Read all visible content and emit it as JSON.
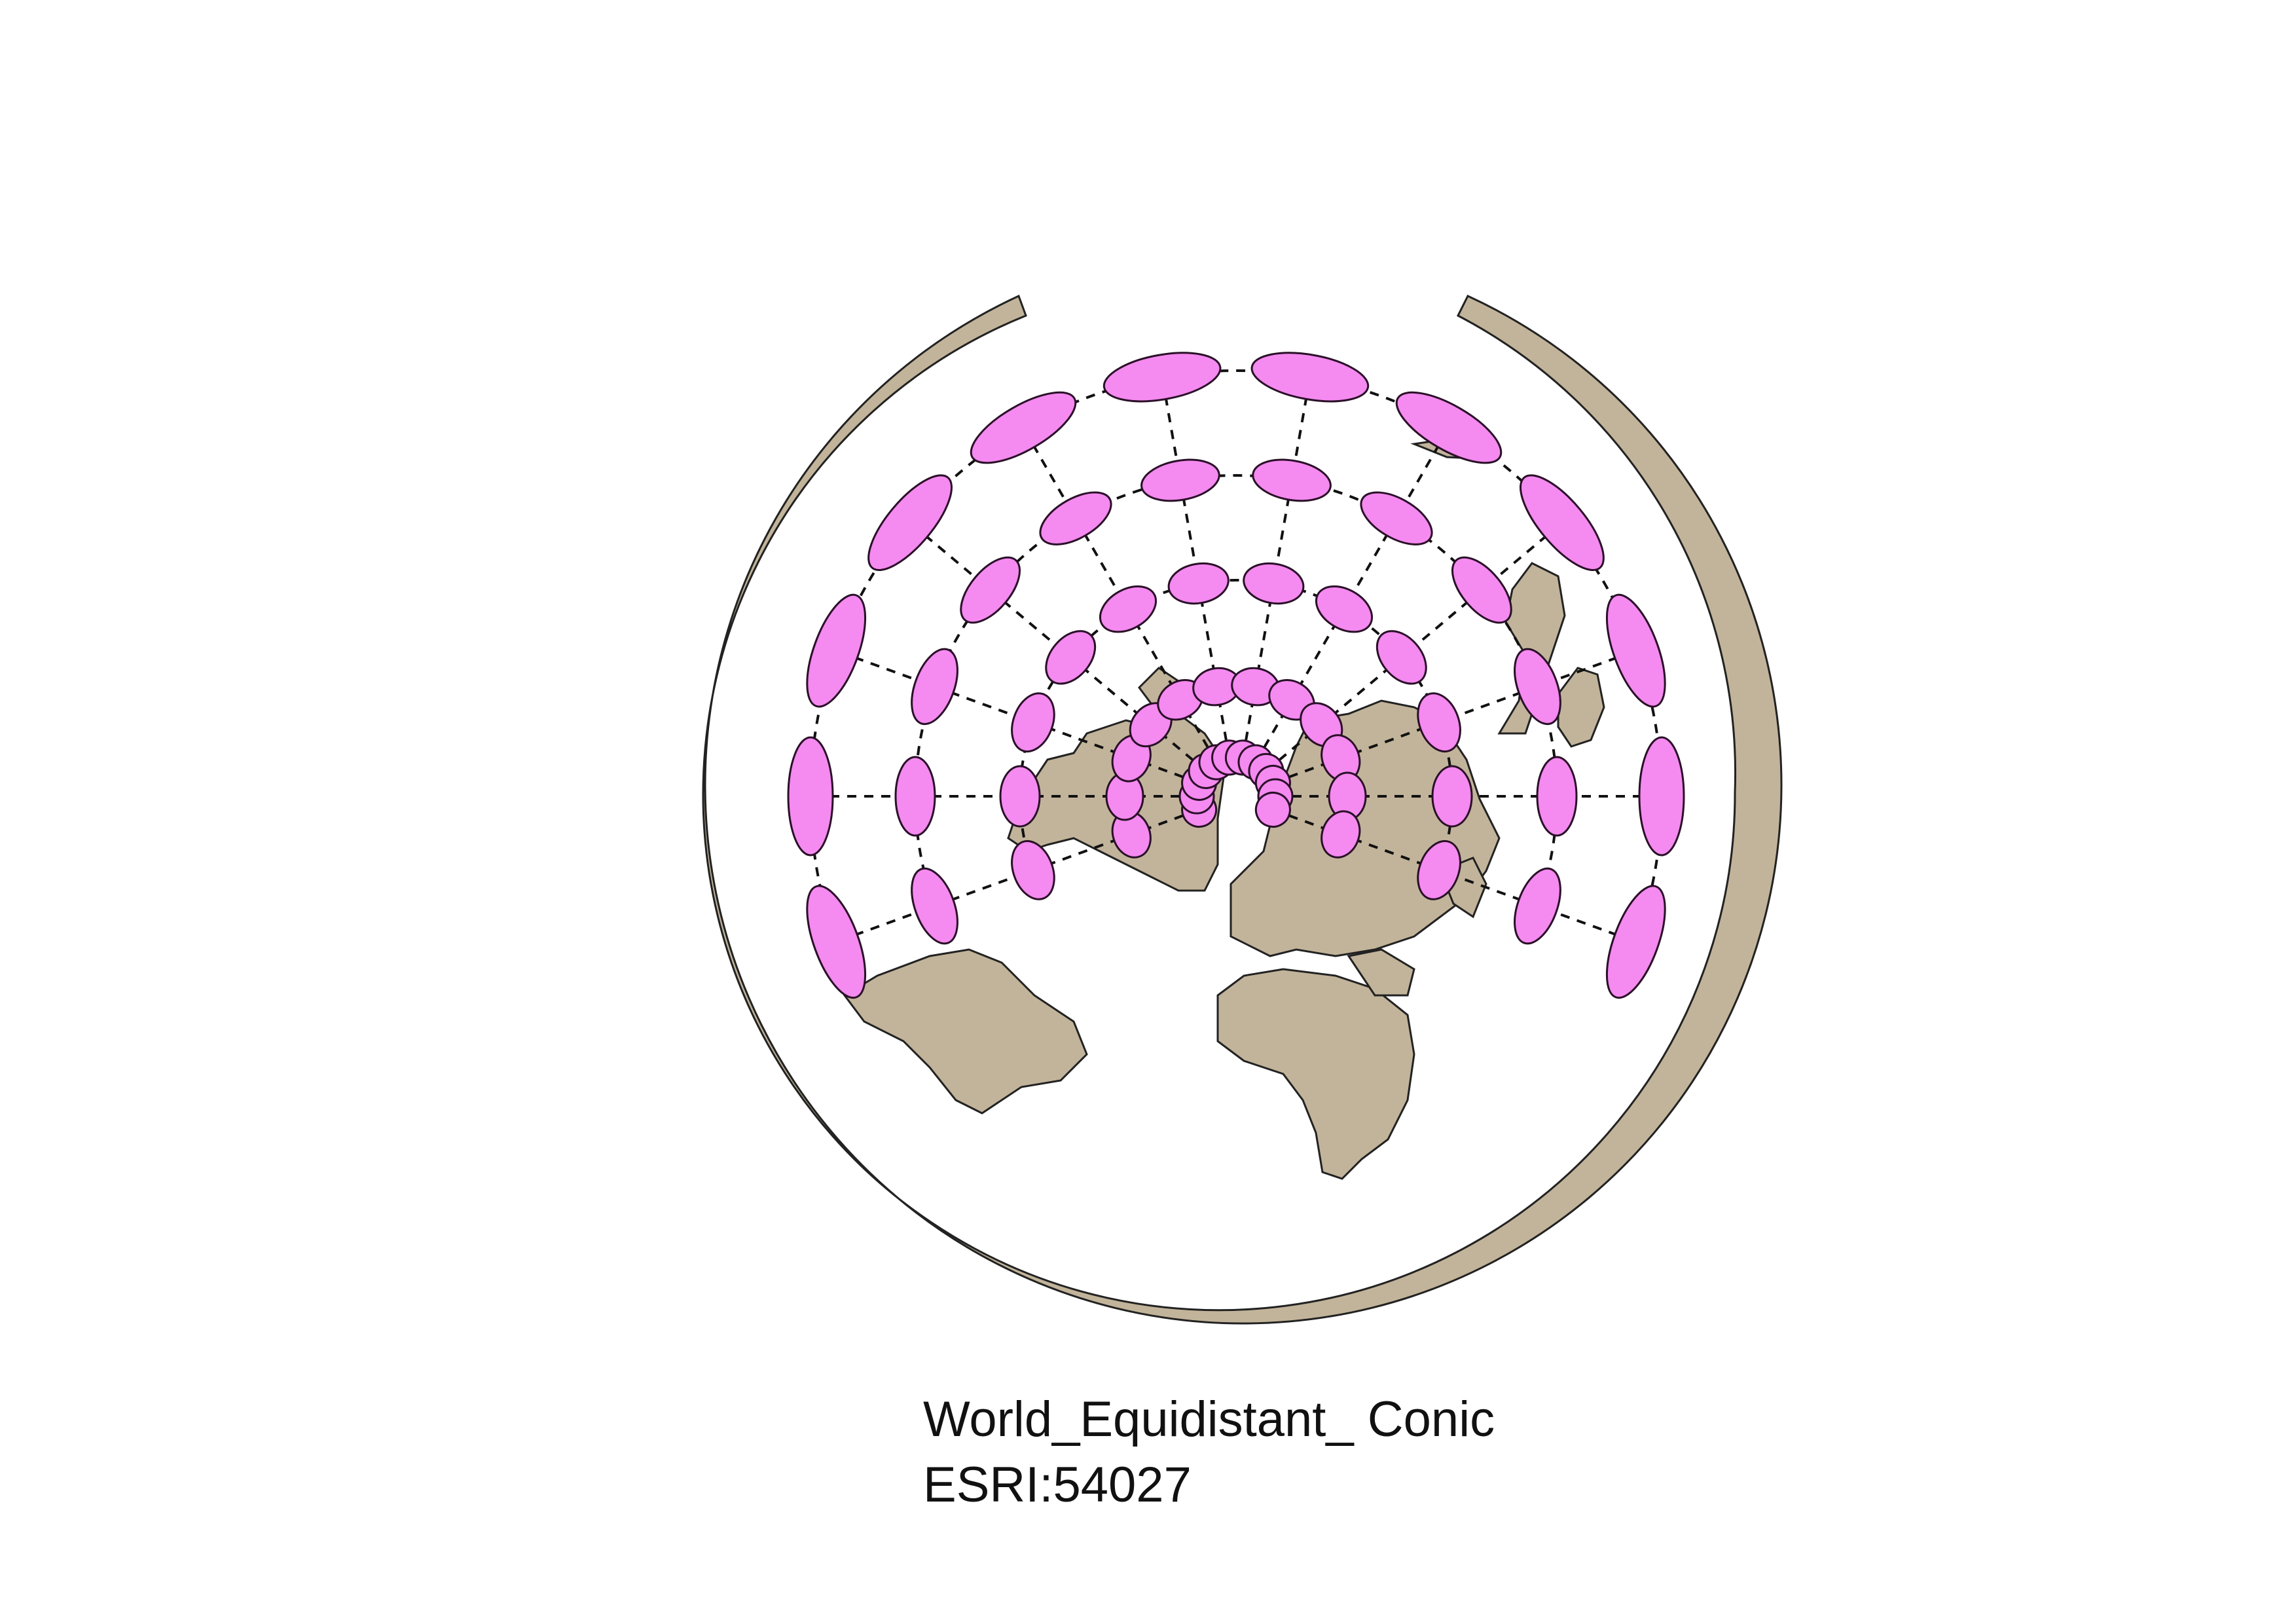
{
  "projection": {
    "name": "World_Equidistant_ Conic",
    "code": "ESRI:54027"
  },
  "style": {
    "land_color": "#c2b49a",
    "land_stroke": "#222222",
    "ellipse_fill": "#f58af0",
    "ellipse_stroke": "#2a1028",
    "graticule_color": "#111111",
    "graticule_style": "dashed"
  },
  "map": {
    "graticule_longitude_step_deg": 30,
    "graticule_latitude_step_deg": 30,
    "tissot_indicatrix": "shown"
  }
}
